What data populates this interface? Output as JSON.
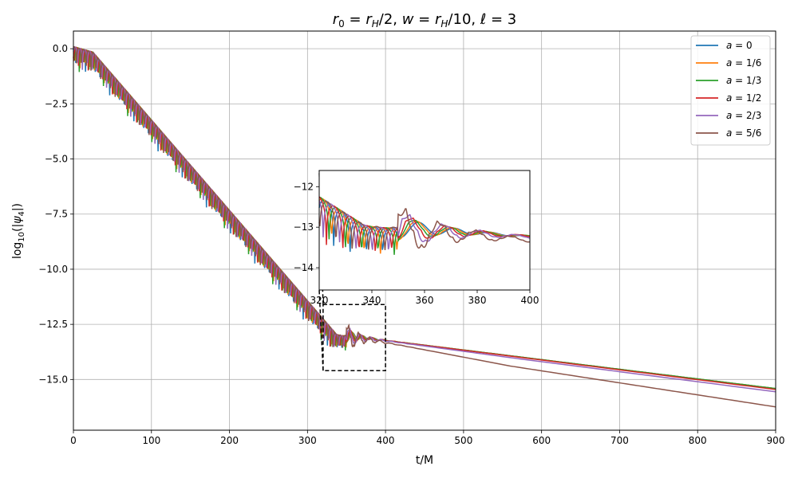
{
  "chart_data": {
    "type": "line",
    "title": "r₀ = r_H/2, w = r_H/10, ℓ = 3",
    "title_parts": {
      "r0": "r",
      "r0_sub": "0",
      "eq1": " = ",
      "rh": "r",
      "rh_sub": "H",
      "div2": "/2, ",
      "w": "w",
      "eq2": " = ",
      "rh2": "r",
      "rh2_sub": "H",
      "div10": "/10, ",
      "ell": "ℓ",
      "eq3": " = 3"
    },
    "xlabel": "t/M",
    "ylabel": "log₁₀(|ψ₄|)",
    "ylabel_parts": {
      "log": "log",
      "sub": "10",
      "open": "(|",
      "psi": "ψ",
      "psi_sub": "4",
      "close": "|)"
    },
    "xlim": [
      0,
      900
    ],
    "ylim": [
      -17.3,
      0.8
    ],
    "xticks": [
      "0",
      "100",
      "200",
      "300",
      "400",
      "500",
      "600",
      "700",
      "800",
      "900"
    ],
    "yticks": [
      "0.0",
      "−2.5",
      "−5.0",
      "−7.5",
      "−10.0",
      "−12.5",
      "−15.0"
    ],
    "grid": true,
    "legend_position": "top-right",
    "series": [
      {
        "name": "a = 0",
        "label_prefix": "a = ",
        "label_value": "0",
        "color": "#1f77b4",
        "late_slope": -0.004375,
        "late_offset": 0.0,
        "ring_phase": 0.0,
        "inset_jitter": 0.0
      },
      {
        "name": "a = 1/6",
        "label_prefix": "a = ",
        "label_value": "1/6",
        "color": "#ff7f0e",
        "late_slope": -0.004375,
        "late_offset": 0.0,
        "ring_phase": 0.4,
        "inset_jitter": 0.05
      },
      {
        "name": "a = 1/3",
        "label_prefix": "a = ",
        "label_value": "1/3",
        "color": "#2ca02c",
        "late_slope": -0.004375,
        "late_offset": 0.0,
        "ring_phase": 0.9,
        "inset_jitter": 0.1
      },
      {
        "name": "a = 1/2",
        "label_prefix": "a = ",
        "label_value": "1/2",
        "color": "#d62728",
        "late_slope": -0.00445,
        "late_offset": 0.0,
        "ring_phase": 1.4,
        "inset_jitter": 0.2
      },
      {
        "name": "a = 2/3",
        "label_prefix": "a = ",
        "label_value": "2/3",
        "color": "#9467bd",
        "late_slope": -0.00455,
        "late_offset": -0.05,
        "ring_phase": 2.0,
        "inset_jitter": 0.35
      },
      {
        "name": "a = 5/6",
        "label_prefix": "a = ",
        "label_value": "5/6",
        "color": "#8c564b",
        "late_slope": -0.00545,
        "late_offset": -0.25,
        "ring_phase": 2.7,
        "inset_jitter": 0.6
      }
    ],
    "inset": {
      "xlim": [
        320,
        400
      ],
      "ylim": [
        -14.55,
        -11.6
      ],
      "xticks": [
        "320",
        "340",
        "360",
        "380",
        "400"
      ],
      "yticks": [
        "−12",
        "−13",
        "−14"
      ],
      "zoom_box": {
        "x": [
          320,
          400
        ],
        "y": [
          -14.6,
          -11.6
        ]
      }
    }
  }
}
